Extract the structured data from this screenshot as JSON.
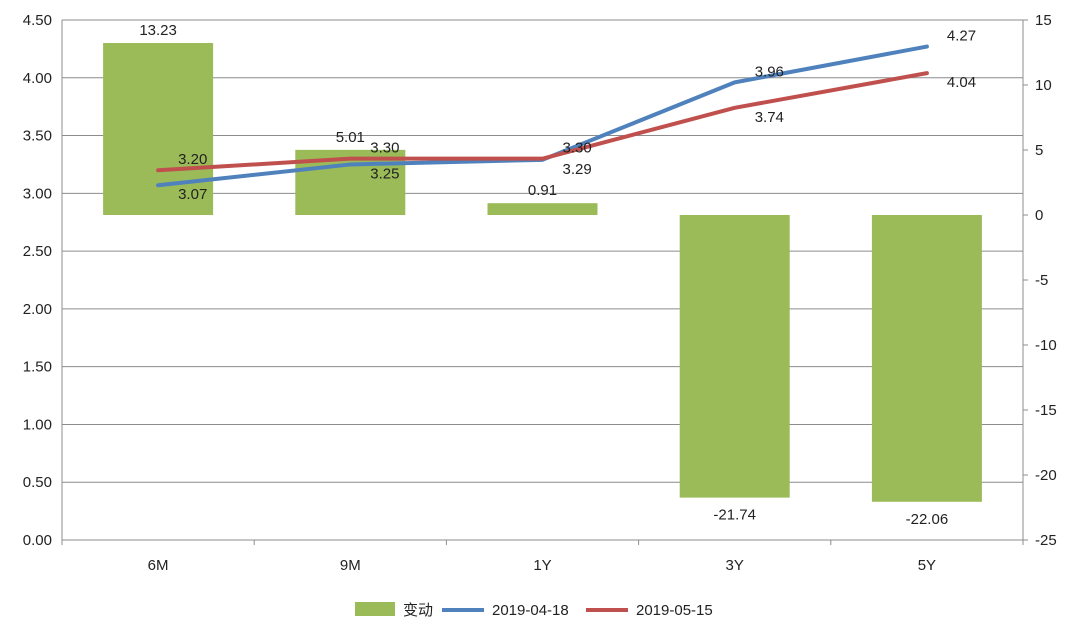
{
  "chart_data": {
    "type": "bar+line",
    "categories": [
      "6M",
      "9M",
      "1Y",
      "3Y",
      "5Y"
    ],
    "bar_series": {
      "name": "变动",
      "values": [
        13.23,
        5.01,
        0.91,
        -21.74,
        -22.06
      ],
      "axis": "right",
      "color": "#9bbb59"
    },
    "line_series": [
      {
        "name": "2019-04-18",
        "values": [
          3.07,
          3.25,
          3.29,
          3.96,
          4.27
        ],
        "axis": "left",
        "color": "#4f81bd"
      },
      {
        "name": "2019-05-15",
        "values": [
          3.2,
          3.3,
          3.3,
          3.74,
          4.04
        ],
        "axis": "left",
        "color": "#c0504d"
      }
    ],
    "left_axis": {
      "ylim": [
        0,
        4.5
      ],
      "ticks": [
        "0.00",
        "0.50",
        "1.00",
        "1.50",
        "2.00",
        "2.50",
        "3.00",
        "3.50",
        "4.00",
        "4.50"
      ]
    },
    "right_axis": {
      "ylim": [
        -25,
        15
      ],
      "ticks": [
        "-25",
        "-20",
        "-15",
        "-10",
        "-5",
        "0",
        "5",
        "10",
        "15"
      ]
    },
    "bar_labels": [
      "13.23",
      "5.01",
      "0.91",
      "-21.74",
      "-22.06"
    ],
    "line_labels": [
      [
        "3.07",
        "3.25",
        "3.29",
        "3.96",
        "4.27"
      ],
      [
        "3.20",
        "3.30",
        "3.30",
        "3.74",
        "4.04"
      ]
    ],
    "grid": true,
    "legend_position": "bottom"
  }
}
